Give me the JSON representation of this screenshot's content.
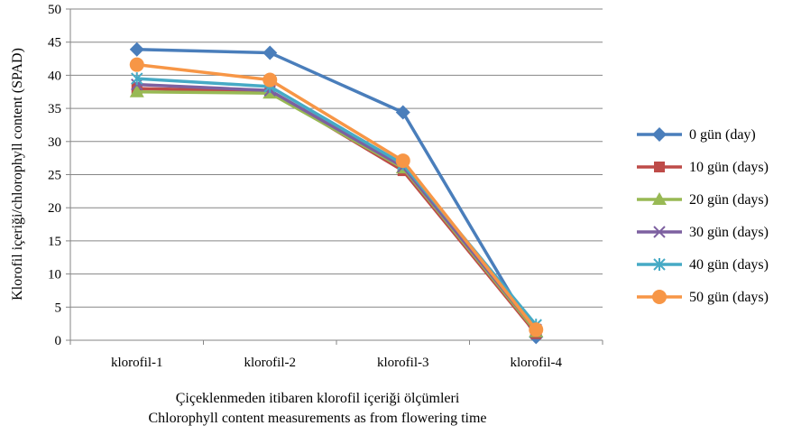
{
  "chart_data": {
    "type": "line",
    "categories": [
      "klorofil-1",
      "klorofil-2",
      "klorofil-3",
      "klorofil-4"
    ],
    "ylabel": "Klorofil içeriği/chlorophyll content (SPAD)",
    "xlabel_line1": "Çiçeklenmeden itibaren klorofil içeriği ölçümleri",
    "xlabel_line2": "Chlorophyll content measurements as from flowering time",
    "ylim": [
      0,
      50
    ],
    "yticks": [
      0,
      5,
      10,
      15,
      20,
      25,
      30,
      35,
      40,
      45,
      50
    ],
    "grid": true,
    "legend_position": "right",
    "series": [
      {
        "name": "0 gün (day)",
        "color": "#4A7EBB",
        "marker": "diamond",
        "values": [
          43.9,
          43.4,
          34.4,
          0.5
        ]
      },
      {
        "name": "10 gün (days)",
        "color": "#BE4B48",
        "marker": "square",
        "values": [
          38.0,
          37.6,
          25.6,
          1.0
        ]
      },
      {
        "name": "20 gün (days)",
        "color": "#98B954",
        "marker": "triangle",
        "values": [
          37.5,
          37.3,
          26.0,
          1.3
        ]
      },
      {
        "name": "30 gün (days)",
        "color": "#7D60A0",
        "marker": "x",
        "values": [
          38.6,
          37.7,
          26.2,
          1.6
        ]
      },
      {
        "name": "40 gün (days)",
        "color": "#46AAC5",
        "marker": "star",
        "values": [
          39.5,
          38.3,
          26.6,
          2.3
        ]
      },
      {
        "name": "50 gün (days)",
        "color": "#F79646",
        "marker": "circle",
        "values": [
          41.6,
          39.3,
          27.1,
          1.6
        ]
      }
    ]
  }
}
